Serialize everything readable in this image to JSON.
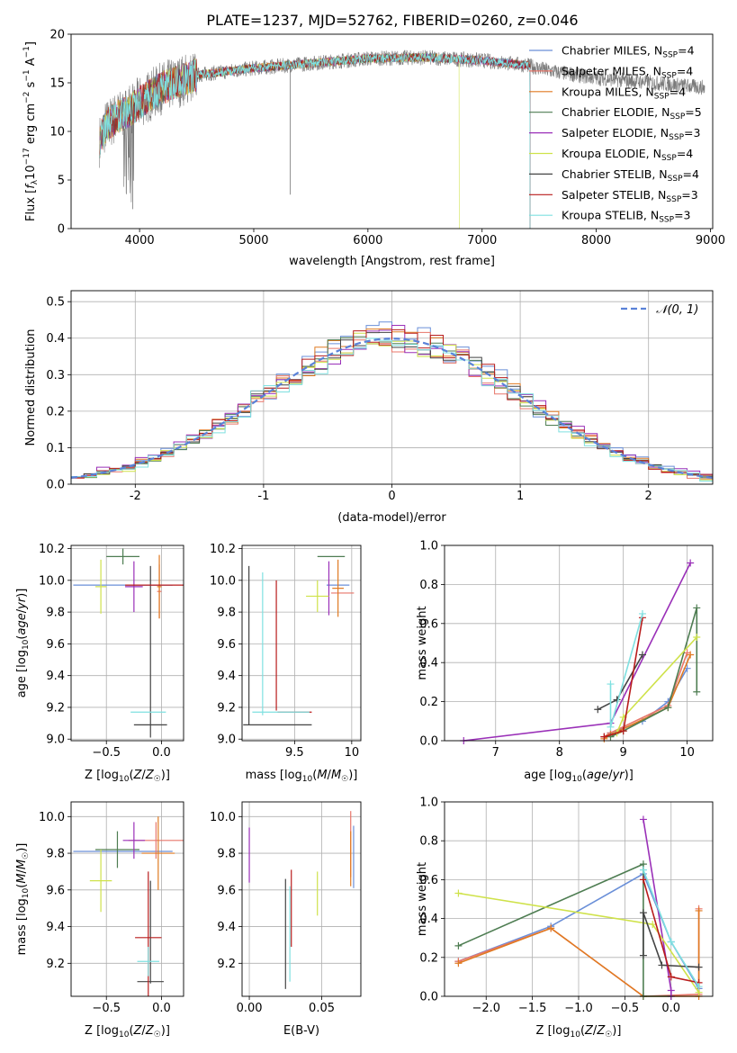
{
  "figure_title": "PLATE=1237, MJD=52762, FIBERID=0260, z=0.046",
  "models": [
    {
      "name": "Chabrier MILES, N$_{SSP}$=4",
      "label_main": "Chabrier MILES, N",
      "label_sub": "SSP",
      "label_tail": "=4",
      "color": "#6a8fd8"
    },
    {
      "name": "Salpeter MILES, N$_{SSP}$=4",
      "label_main": "Salpeter MILES, N",
      "label_sub": "SSP",
      "label_tail": "=4",
      "color": "#e8766a"
    },
    {
      "name": "Kroupa MILES, N$_{SSP}$=4",
      "label_main": "Kroupa MILES, N",
      "label_sub": "SSP",
      "label_tail": "=4",
      "color": "#e07a22"
    },
    {
      "name": "Chabrier ELODIE, N$_{SSP}$=5",
      "label_main": "Chabrier ELODIE, N",
      "label_sub": "SSP",
      "label_tail": "=5",
      "color": "#4e7d52"
    },
    {
      "name": "Salpeter ELODIE, N$_{SSP}$=3",
      "label_main": "Salpeter ELODIE, N",
      "label_sub": "SSP",
      "label_tail": "=3",
      "color": "#9a30b8"
    },
    {
      "name": "Kroupa ELODIE, N$_{SSP}$=4",
      "label_main": "Kroupa ELODIE, N",
      "label_sub": "SSP",
      "label_tail": "=4",
      "color": "#cfe24a"
    },
    {
      "name": "Chabrier STELIB, N$_{SSP}$=4",
      "label_main": "Chabrier STELIB, N",
      "label_sub": "SSP",
      "label_tail": "=4",
      "color": "#444444"
    },
    {
      "name": "Salpeter STELIB, N$_{SSP}$=3",
      "label_main": "Salpeter STELIB, N",
      "label_sub": "SSP",
      "label_tail": "=3",
      "color": "#b81c1c"
    },
    {
      "name": "Kroupa STELIB, N$_{SSP}$=3",
      "label_main": "Kroupa STELIB, N",
      "label_sub": "SSP",
      "label_tail": "=3",
      "color": "#7fe0e0"
    }
  ],
  "chart_data": [
    {
      "id": "spectrum",
      "type": "line",
      "title": "PLATE=1237, MJD=52762, FIBERID=0260, z=0.046",
      "xlabel": "wavelength [Angstrom, rest frame]",
      "ylabel": "Flux [f_λ10^-17 erg cm^-2 s^-1 A^-1]",
      "xlim": [
        3400,
        9020
      ],
      "ylim": [
        0,
        20
      ],
      "xticks": [
        4000,
        5000,
        6000,
        7000,
        8000,
        9000
      ],
      "yticks": [
        0,
        5,
        10,
        15,
        20
      ],
      "legend": "top-right",
      "grid": false,
      "observed_continuum": {
        "wavelength": [
          3650,
          3700,
          3800,
          3900,
          4000,
          4200,
          4500,
          5000,
          5500,
          6000,
          6500,
          7000,
          7400,
          7600,
          8000,
          8500,
          8950
        ],
        "flux": [
          9.0,
          10.5,
          11.5,
          12.0,
          13.0,
          14.5,
          15.8,
          16.5,
          17.0,
          17.5,
          17.6,
          17.3,
          16.8,
          16.2,
          15.5,
          15.0,
          14.5
        ]
      },
      "model_cutoff_wavelength": [
        7420,
        7420,
        7420,
        7420,
        7420,
        6800,
        7420,
        7420,
        7420
      ],
      "observed_dips": [
        {
          "x": 5320,
          "y": 3.5
        },
        {
          "x": 3940,
          "y": 2.0
        }
      ]
    },
    {
      "id": "residuals",
      "type": "bar",
      "xlabel": "(data-model)/error",
      "ylabel": "Normed distribution",
      "xlim": [
        -2.5,
        2.5
      ],
      "ylim": [
        0,
        0.53
      ],
      "xticks": [
        -2,
        -1,
        0,
        1,
        2
      ],
      "yticks": [
        0.0,
        0.1,
        0.2,
        0.3,
        0.4,
        0.5
      ],
      "grid": true,
      "legend": "top-right",
      "reference": "𝒩(0, 1)",
      "bin_edges_start": -2.5,
      "bin_width": 0.1,
      "hist_seed_jitter": [
        0.02,
        -0.015,
        0.01,
        -0.01,
        0.025,
        -0.02,
        0.005,
        0.015,
        -0.025
      ]
    },
    {
      "id": "age_vs_Z",
      "type": "scatter",
      "xlabel": "Z [log10(Z/Z☉)]",
      "ylabel": "age  [log10(age/yr)]",
      "xlim": [
        -0.82,
        0.2
      ],
      "ylim": [
        8.99,
        10.22
      ],
      "xticks": [
        -0.5,
        0.0
      ],
      "xtick_labels": [
        "−0.5",
        "0.0"
      ],
      "yticks": [
        9.0,
        9.2,
        9.4,
        9.6,
        9.8,
        10.0,
        10.2
      ],
      "grid": true,
      "points": [
        {
          "x": -0.35,
          "y": 9.97,
          "xerr": 0.45,
          "yerr": 0.0,
          "model": 0
        },
        {
          "x": -0.02,
          "y": 9.93,
          "xerr": 0.02,
          "yerr": 0.17,
          "model": 1
        },
        {
          "x": -0.02,
          "y": 9.96,
          "xerr": 0.02,
          "yerr": 0.2,
          "model": 2
        },
        {
          "x": -0.35,
          "y": 10.15,
          "xerr": 0.15,
          "yerr": 0.05,
          "model": 3
        },
        {
          "x": -0.25,
          "y": 9.96,
          "xerr": 0.08,
          "yerr": 0.16,
          "model": 4
        },
        {
          "x": -0.55,
          "y": 9.96,
          "xerr": 0.05,
          "yerr": 0.17,
          "model": 5
        },
        {
          "x": -0.1,
          "y": 9.09,
          "xerr": 0.15,
          "yerr": 0.0,
          "model": 6
        },
        {
          "x": -0.1,
          "y": 9.55,
          "xerr": 0.0,
          "yerr": 0.54,
          "model": 6
        },
        {
          "x": -0.05,
          "y": 9.97,
          "xerr": 0.28,
          "yerr": 0.0,
          "model": 7
        },
        {
          "x": -0.12,
          "y": 9.17,
          "xerr": 0.16,
          "yerr": 0.0,
          "model": 8
        }
      ]
    },
    {
      "id": "age_vs_mass",
      "type": "scatter",
      "xlabel": "mass [log10(M/M☉)]",
      "ylabel": "",
      "xlim": [
        9.04,
        10.08
      ],
      "ylim": [
        8.99,
        10.22
      ],
      "xticks": [
        9.5,
        10.0
      ],
      "yticks": [
        9.0,
        9.2,
        9.4,
        9.6,
        9.8,
        10.0,
        10.2
      ],
      "grid": true,
      "points": [
        {
          "x": 9.88,
          "y": 9.97,
          "xerr": 0.1,
          "yerr": 0.0,
          "model": 0
        },
        {
          "x": 9.92,
          "y": 9.92,
          "xerr": 0.1,
          "yerr": 0.0,
          "model": 1
        },
        {
          "x": 9.88,
          "y": 9.95,
          "xerr": 0.05,
          "yerr": 0.18,
          "model": 2
        },
        {
          "x": 9.82,
          "y": 10.15,
          "xerr": 0.12,
          "yerr": 0.0,
          "model": 3
        },
        {
          "x": 9.8,
          "y": 9.95,
          "xerr": 0.0,
          "yerr": 0.17,
          "model": 4
        },
        {
          "x": 9.7,
          "y": 9.9,
          "xerr": 0.1,
          "yerr": 0.1,
          "model": 5
        },
        {
          "x": 9.1,
          "y": 9.59,
          "xerr": 0.0,
          "yerr": 0.5,
          "model": 6
        },
        {
          "x": 9.35,
          "y": 9.09,
          "xerr": 0.3,
          "yerr": 0.0,
          "model": 6
        },
        {
          "x": 9.34,
          "y": 9.59,
          "xerr": 0.0,
          "yerr": 0.41,
          "model": 7
        },
        {
          "x": 9.5,
          "y": 9.17,
          "xerr": 0.15,
          "yerr": 0.0,
          "model": 7
        },
        {
          "x": 9.22,
          "y": 9.6,
          "xerr": 0.0,
          "yerr": 0.45,
          "model": 8
        },
        {
          "x": 9.38,
          "y": 9.17,
          "xerr": 0.25,
          "yerr": 0.0,
          "model": 8
        }
      ]
    },
    {
      "id": "massweight_vs_age",
      "type": "line",
      "xlabel": "age  [log10(age/yr)]",
      "ylabel": "mass weight",
      "xlim": [
        6.2,
        10.4
      ],
      "ylim": [
        0,
        1.0
      ],
      "xticks": [
        7,
        8,
        9,
        10
      ],
      "yticks": [
        0.0,
        0.2,
        0.4,
        0.6,
        0.8,
        1.0
      ],
      "grid": true,
      "series": [
        {
          "model": 0,
          "x": [
            8.7,
            8.8,
            9.3,
            9.7,
            10.0
          ],
          "y": [
            0.02,
            0.04,
            0.1,
            0.2,
            0.37
          ]
        },
        {
          "model": 1,
          "x": [
            8.7,
            8.8,
            9.7,
            10.0
          ],
          "y": [
            0.02,
            0.04,
            0.18,
            0.45
          ]
        },
        {
          "model": 2,
          "x": [
            8.7,
            8.8,
            9.7,
            10.05
          ],
          "y": [
            0.01,
            0.03,
            0.17,
            0.44
          ]
        },
        {
          "model": 3,
          "x": [
            8.8,
            9.0,
            9.7,
            10.15,
            10.15
          ],
          "y": [
            0.02,
            0.05,
            0.17,
            0.68,
            0.25
          ]
        },
        {
          "model": 4,
          "x": [
            6.5,
            8.8,
            10.05
          ],
          "y": [
            0.0,
            0.09,
            0.91
          ]
        },
        {
          "model": 5,
          "x": [
            8.9,
            9.0,
            10.15
          ],
          "y": [
            0.04,
            0.12,
            0.53
          ]
        },
        {
          "model": 6,
          "x": [
            8.6,
            8.9,
            9.3
          ],
          "y": [
            0.16,
            0.21,
            0.44
          ]
        },
        {
          "model": 7,
          "x": [
            8.7,
            9.0,
            9.3
          ],
          "y": [
            0.02,
            0.05,
            0.63
          ]
        },
        {
          "model": 8,
          "x": [
            8.8,
            8.8,
            9.3
          ],
          "y": [
            0.29,
            0.07,
            0.65
          ]
        }
      ]
    },
    {
      "id": "mass_vs_Z",
      "type": "scatter",
      "xlabel": "Z [log10(Z/Z☉)]",
      "ylabel": "mass [log10(M/M☉)]",
      "xlim": [
        -0.82,
        0.2
      ],
      "ylim": [
        9.02,
        10.08
      ],
      "xticks": [
        -0.5,
        0.0
      ],
      "xtick_labels": [
        "−0.5",
        "0.0"
      ],
      "yticks": [
        9.2,
        9.4,
        9.6,
        9.8,
        10.0
      ],
      "grid": true,
      "points": [
        {
          "x": -0.35,
          "y": 9.81,
          "xerr": 0.45,
          "yerr": 0.0,
          "model": 0
        },
        {
          "x": -0.05,
          "y": 9.87,
          "xerr": 0.25,
          "yerr": 0.1,
          "model": 1
        },
        {
          "x": -0.03,
          "y": 9.8,
          "xerr": 0.15,
          "yerr": 0.2,
          "model": 2
        },
        {
          "x": -0.4,
          "y": 9.82,
          "xerr": 0.2,
          "yerr": 0.1,
          "model": 3
        },
        {
          "x": -0.25,
          "y": 9.87,
          "xerr": 0.1,
          "yerr": 0.1,
          "model": 4
        },
        {
          "x": -0.55,
          "y": 9.65,
          "xerr": 0.1,
          "yerr": 0.17,
          "model": 5
        },
        {
          "x": -0.1,
          "y": 9.1,
          "xerr": 0.12,
          "yerr": 0.0,
          "model": 6
        },
        {
          "x": -0.1,
          "y": 9.37,
          "xerr": 0.0,
          "yerr": 0.28,
          "model": 6
        },
        {
          "x": -0.12,
          "y": 9.34,
          "xerr": 0.12,
          "yerr": 0.36,
          "model": 7
        },
        {
          "x": -0.12,
          "y": 9.21,
          "xerr": 0.1,
          "yerr": 0.08,
          "model": 8
        }
      ]
    },
    {
      "id": "mass_vs_EBV",
      "type": "scatter",
      "xlabel": "E(B-V)",
      "ylabel": "",
      "xlim": [
        -0.005,
        0.077
      ],
      "ylim": [
        9.02,
        10.08
      ],
      "xticks": [
        0.0,
        0.05
      ],
      "xtick_labels": [
        "0.00",
        "0.05"
      ],
      "yticks": [
        9.2,
        9.4,
        9.6,
        9.8,
        10.0
      ],
      "grid": true,
      "points": [
        {
          "x": 0.072,
          "y": 9.78,
          "xerr": 0.0,
          "yerr": 0.17,
          "model": 0
        },
        {
          "x": 0.07,
          "y": 9.85,
          "xerr": 0.0,
          "yerr": 0.18,
          "model": 1
        },
        {
          "x": 0.07,
          "y": 9.77,
          "xerr": 0.0,
          "yerr": 0.15,
          "model": 2
        },
        {
          "x": 0.0,
          "y": 9.79,
          "xerr": 0.0,
          "yerr": 0.15,
          "model": 4
        },
        {
          "x": 0.047,
          "y": 9.58,
          "xerr": 0.0,
          "yerr": 0.12,
          "model": 5
        },
        {
          "x": 0.025,
          "y": 9.36,
          "xerr": 0.0,
          "yerr": 0.3,
          "model": 6
        },
        {
          "x": 0.029,
          "y": 9.5,
          "xerr": 0.0,
          "yerr": 0.21,
          "model": 7
        },
        {
          "x": 0.028,
          "y": 9.36,
          "xerr": 0.0,
          "yerr": 0.26,
          "model": 8
        }
      ]
    },
    {
      "id": "massweight_vs_Z",
      "type": "line",
      "xlabel": "Z [log10(Z/Z☉)]",
      "ylabel": "mass weight",
      "xlim": [
        -2.45,
        0.45
      ],
      "ylim": [
        0,
        1.0
      ],
      "xticks": [
        -2.0,
        -1.5,
        -1.0,
        -0.5,
        0.0
      ],
      "xtick_labels": [
        "−2.0",
        "−1.5",
        "−1.0",
        "−0.5",
        "0.0"
      ],
      "yticks": [
        0.0,
        0.2,
        0.4,
        0.6,
        0.8,
        1.0
      ],
      "grid": true,
      "series": [
        {
          "model": 0,
          "x": [
            -2.3,
            -1.3,
            -0.3,
            0.0,
            0.3
          ],
          "y": [
            0.18,
            0.36,
            0.63,
            0.28,
            0.04
          ]
        },
        {
          "model": 1,
          "x": [
            -2.3,
            -1.3,
            -0.3,
            0.3,
            0.3
          ],
          "y": [
            0.18,
            0.35,
            0.0,
            0.01,
            0.45
          ]
        },
        {
          "model": 2,
          "x": [
            -2.3,
            -1.3,
            -0.3,
            0.3,
            0.3
          ],
          "y": [
            0.17,
            0.35,
            0.0,
            0.0,
            0.44
          ]
        },
        {
          "model": 3,
          "x": [
            -2.3,
            -0.3,
            -0.3,
            0.0
          ],
          "y": [
            0.26,
            0.68,
            0.0,
            0.0
          ]
        },
        {
          "model": 4,
          "x": [
            -0.3,
            0.0,
            0.0
          ],
          "y": [
            0.91,
            0.03,
            0.0
          ]
        },
        {
          "model": 5,
          "x": [
            -2.3,
            -0.2,
            0.3
          ],
          "y": [
            0.53,
            0.37,
            0.02
          ]
        },
        {
          "model": 6,
          "x": [
            -0.3,
            -0.3,
            -0.1,
            0.3
          ],
          "y": [
            0.21,
            0.43,
            0.16,
            0.15
          ]
        },
        {
          "model": 7,
          "x": [
            -0.3,
            0.0,
            0.3
          ],
          "y": [
            0.6,
            0.1,
            0.07
          ]
        },
        {
          "model": 8,
          "x": [
            -0.3,
            0.0,
            0.3
          ],
          "y": [
            0.65,
            0.28,
            0.05
          ]
        }
      ]
    }
  ]
}
